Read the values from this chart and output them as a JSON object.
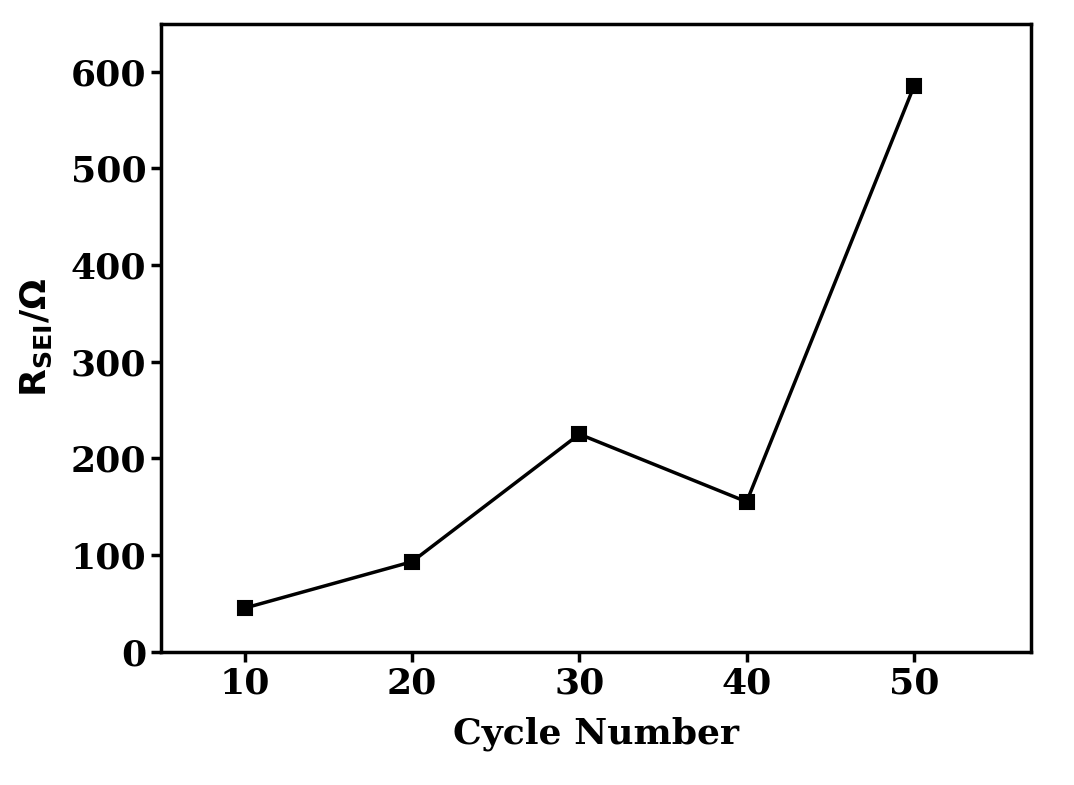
{
  "x": [
    10,
    20,
    30,
    40,
    50
  ],
  "y": [
    45,
    93,
    225,
    155,
    585
  ],
  "xlabel": "Cycle Number",
  "xlim": [
    5,
    57
  ],
  "ylim": [
    0,
    650
  ],
  "xticks": [
    10,
    20,
    30,
    40,
    50
  ],
  "yticks": [
    0,
    100,
    200,
    300,
    400,
    500,
    600
  ],
  "line_color": "#000000",
  "marker": "s",
  "marker_size": 10,
  "marker_color": "#000000",
  "line_width": 2.5,
  "background_color": "#ffffff",
  "xlabel_fontsize": 26,
  "ylabel_fontsize": 26,
  "tick_fontsize": 26,
  "axis_linewidth": 2.5
}
